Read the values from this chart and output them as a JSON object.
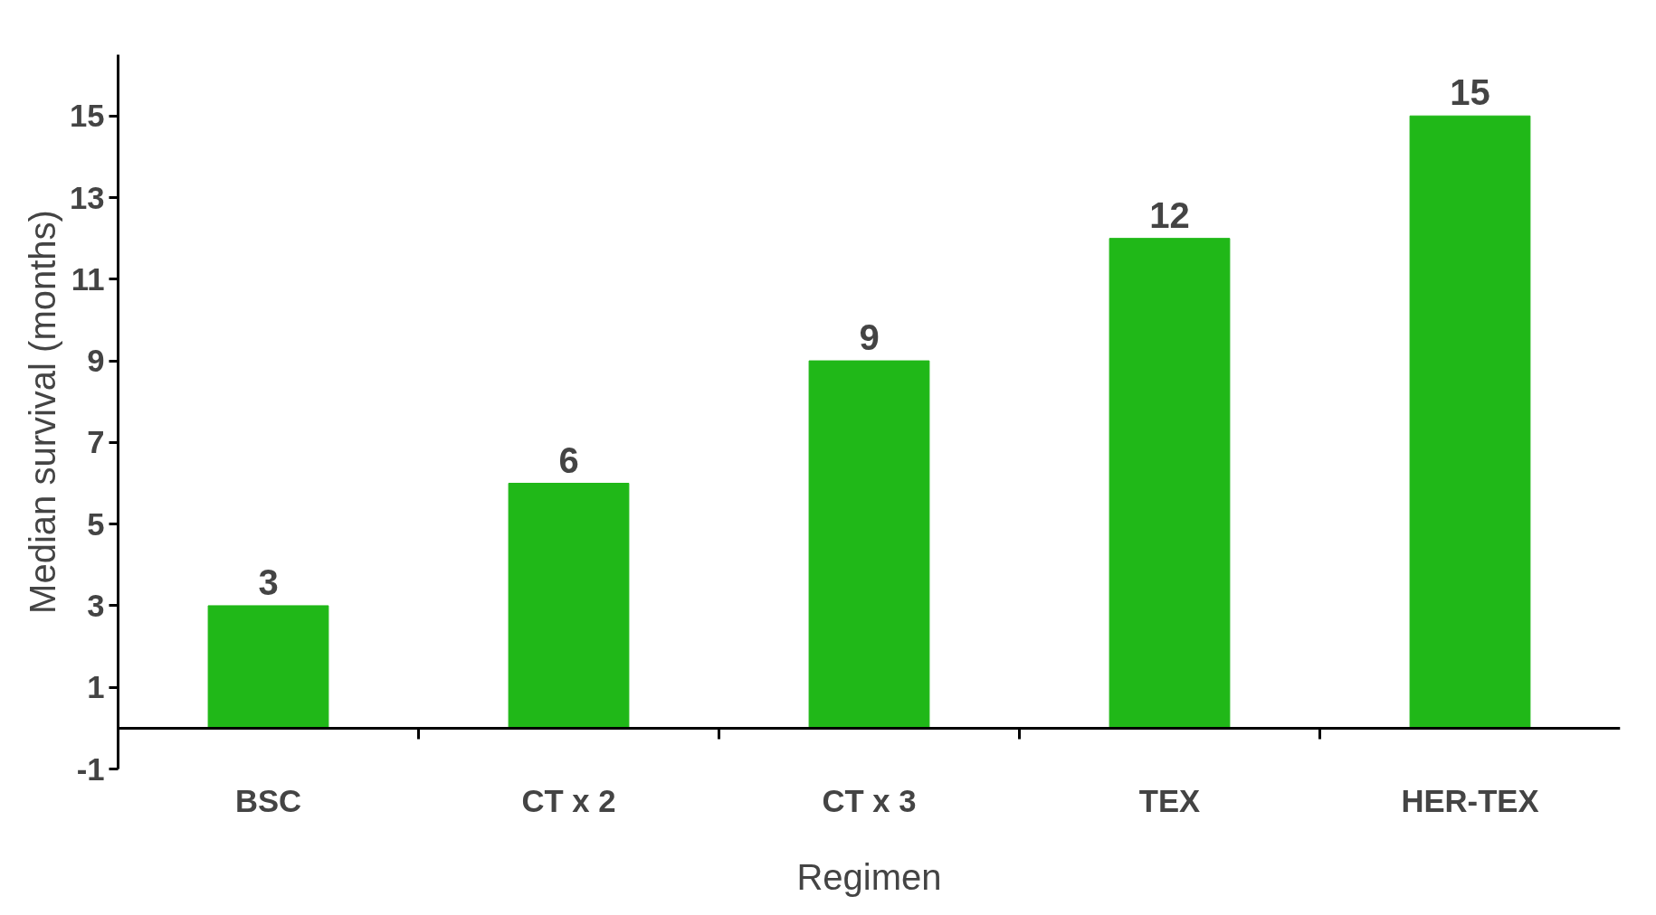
{
  "chart_data": {
    "type": "bar",
    "xlabel": "Regimen",
    "ylabel": "Median survival (months)",
    "categories": [
      "BSC",
      "CT x 2",
      "CT x 3",
      "TEX",
      "HER-TEX"
    ],
    "values": [
      3,
      6,
      9,
      12,
      15
    ],
    "color": "#20b818",
    "ylim": [
      -1,
      16.5
    ],
    "yticks": [
      -1,
      1,
      3,
      5,
      7,
      9,
      11,
      13,
      15
    ],
    "grid": false,
    "data_labels": true
  }
}
